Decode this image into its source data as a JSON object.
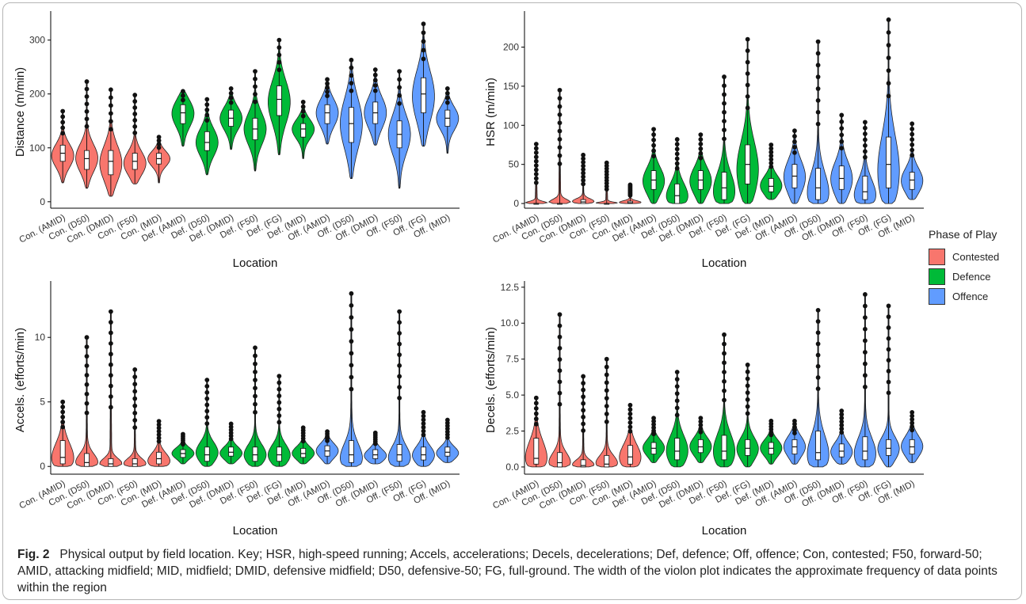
{
  "caption": {
    "fig_label": "Fig. 2",
    "text": "Physical output by field location. Key; HSR, high-speed running; Accels, accelerations; Decels, decelerations; Def, defence; Off, offence; Con, contested; F50, forward-50; AMID, attacking midfield; MID, midfield; DMID, defensive midfield; D50, defensive-50; FG, full-ground. The width of the violon plot indicates the approximate frequency of data points within the region"
  },
  "legend": {
    "title": "Phase of Play",
    "items": [
      {
        "label": "Contested",
        "color": "#F8766D"
      },
      {
        "label": "Defence",
        "color": "#00BA38"
      },
      {
        "label": "Offence",
        "color": "#619CFF"
      }
    ]
  },
  "chart_data": [
    {
      "type": "violin",
      "xlabel": "Location",
      "ylabel": "Distance (m/min)",
      "ylim": [
        -12,
        345
      ],
      "yticks": [
        0,
        100,
        200,
        300
      ],
      "categories": [
        "Con. (AMID)",
        "Con. (D50)",
        "Con. (DMID)",
        "Con. (F50)",
        "Con. (MID)",
        "Def. (AMID)",
        "Def. (D50)",
        "Def. (DMID)",
        "Def. (F50)",
        "Def. (FG)",
        "Def. (MID)",
        "Off. (AMID)",
        "Off. (D50)",
        "Off. (DMID)",
        "Off. (F50)",
        "Off. (FG)",
        "Off. (MID)"
      ],
      "group": [
        "Contested",
        "Contested",
        "Contested",
        "Contested",
        "Contested",
        "Defence",
        "Defence",
        "Defence",
        "Defence",
        "Defence",
        "Defence",
        "Offence",
        "Offence",
        "Offence",
        "Offence",
        "Offence",
        "Offence"
      ],
      "min": [
        35,
        25,
        10,
        33,
        35,
        103,
        50,
        97,
        57,
        87,
        80,
        107,
        43,
        105,
        25,
        103,
        90
      ],
      "q1": [
        75,
        60,
        50,
        60,
        70,
        145,
        95,
        140,
        115,
        160,
        120,
        145,
        110,
        145,
        100,
        165,
        140
      ],
      "median": [
        90,
        80,
        75,
        75,
        80,
        165,
        110,
        155,
        135,
        190,
        135,
        165,
        145,
        165,
        125,
        200,
        155
      ],
      "q3": [
        105,
        95,
        95,
        90,
        90,
        180,
        130,
        170,
        155,
        215,
        145,
        180,
        175,
        185,
        150,
        230,
        170
      ],
      "max": [
        168,
        223,
        208,
        198,
        120,
        205,
        190,
        210,
        242,
        300,
        185,
        227,
        263,
        245,
        242,
        330,
        210
      ],
      "mode": [
        85,
        80,
        70,
        70,
        80,
        165,
        110,
        155,
        135,
        185,
        135,
        165,
        145,
        165,
        125,
        195,
        155
      ]
    },
    {
      "type": "violin",
      "xlabel": "Location",
      "ylabel": "HSR (m/min)",
      "ylim": [
        -6,
        240
      ],
      "yticks": [
        0,
        50,
        100,
        150,
        200
      ],
      "categories": [
        "Con. (AMID)",
        "Con. (D50)",
        "Con. (DMID)",
        "Con. (F50)",
        "Con. (MID)",
        "Def. (AMID)",
        "Def. (D50)",
        "Def. (DMID)",
        "Def. (F50)",
        "Def. (FG)",
        "Def. (MID)",
        "Off. (AMID)",
        "Off. (D50)",
        "Off. (DMID)",
        "Off. (F50)",
        "Off. (FG)",
        "Off. (MID)"
      ],
      "group": [
        "Contested",
        "Contested",
        "Contested",
        "Contested",
        "Contested",
        "Defence",
        "Defence",
        "Defence",
        "Defence",
        "Defence",
        "Defence",
        "Offence",
        "Offence",
        "Offence",
        "Offence",
        "Offence",
        "Offence"
      ],
      "min": [
        0,
        0,
        0,
        0,
        0,
        0,
        0,
        0,
        0,
        0,
        5,
        0,
        0,
        0,
        0,
        0,
        5
      ],
      "q1": [
        0,
        0,
        0,
        0,
        0,
        18,
        0,
        18,
        5,
        25,
        15,
        20,
        5,
        18,
        5,
        20,
        18
      ],
      "median": [
        0,
        0,
        2,
        0,
        1,
        30,
        10,
        30,
        20,
        50,
        22,
        35,
        20,
        32,
        15,
        50,
        30
      ],
      "q3": [
        0,
        0,
        5,
        0,
        3,
        42,
        25,
        42,
        40,
        75,
        32,
        50,
        45,
        48,
        35,
        85,
        40
      ],
      "max": [
        76,
        145,
        62,
        52,
        24,
        95,
        82,
        88,
        162,
        210,
        75,
        93,
        207,
        113,
        104,
        235,
        102
      ],
      "mode": [
        0,
        0,
        2,
        0,
        1,
        28,
        5,
        28,
        10,
        40,
        22,
        33,
        5,
        30,
        5,
        35,
        28
      ]
    },
    {
      "type": "violin",
      "xlabel": "Location",
      "ylabel": "Accels. (efforts/min)",
      "ylim": [
        -0.6,
        14
      ],
      "yticks": [
        0,
        5,
        10
      ],
      "categories": [
        "Con. (AMID)",
        "Con. (D50)",
        "Con. (DMID)",
        "Con. (F50)",
        "Con. (MID)",
        "Def. (AMID)",
        "Def. (D50)",
        "Def. (DMID)",
        "Def. (F50)",
        "Def. (FG)",
        "Def. (MID)",
        "Off. (AMID)",
        "Off. (D50)",
        "Off. (DMID)",
        "Off. (F50)",
        "Off. (FG)",
        "Off. (MID)"
      ],
      "group": [
        "Contested",
        "Contested",
        "Contested",
        "Contested",
        "Contested",
        "Defence",
        "Defence",
        "Defence",
        "Defence",
        "Defence",
        "Defence",
        "Offence",
        "Offence",
        "Offence",
        "Offence",
        "Offence",
        "Offence"
      ],
      "min": [
        0,
        0,
        0,
        0,
        0,
        0.2,
        0,
        0.2,
        0,
        0,
        0.2,
        0.2,
        0,
        0.2,
        0,
        0,
        0.3
      ],
      "q1": [
        0.2,
        0,
        0,
        0,
        0.2,
        0.7,
        0.4,
        0.8,
        0.4,
        0.4,
        0.7,
        0.8,
        0.3,
        0.6,
        0.4,
        0.5,
        0.8
      ],
      "median": [
        0.7,
        0.3,
        0.2,
        0.2,
        0.6,
        1.0,
        0.9,
        1.1,
        0.9,
        0.9,
        1.0,
        1.2,
        0.9,
        0.9,
        0.9,
        0.9,
        1.1
      ],
      "q3": [
        2.0,
        1.0,
        0.6,
        0.6,
        1.1,
        1.3,
        1.5,
        1.5,
        1.5,
        1.5,
        1.4,
        1.6,
        2.0,
        1.3,
        1.7,
        1.5,
        1.5
      ],
      "max": [
        5.0,
        10.0,
        12.0,
        7.5,
        3.5,
        2.5,
        6.7,
        3.3,
        9.2,
        7.0,
        3.0,
        2.7,
        13.4,
        2.6,
        12.0,
        4.2,
        3.6
      ],
      "mode": [
        0.3,
        0.1,
        0.1,
        0.1,
        0.3,
        1.0,
        1.0,
        1.0,
        0.8,
        0.8,
        1.0,
        1.2,
        0.3,
        0.8,
        0.5,
        0.8,
        1.0
      ]
    },
    {
      "type": "violin",
      "xlabel": "Location",
      "ylabel": "Decels. (efforts/min)",
      "ylim": [
        -0.5,
        12.6
      ],
      "yticks": [
        0.0,
        2.5,
        5.0,
        7.5,
        10.0,
        12.5
      ],
      "categories": [
        "Con. (AMID)",
        "Con. (D50)",
        "Con. (DMID)",
        "Con. (F50)",
        "Con. (MID)",
        "Def. (AMID)",
        "Def. (D50)",
        "Def. (DMID)",
        "Def. (F50)",
        "Def. (FG)",
        "Def. (MID)",
        "Off. (AMID)",
        "Off. (D50)",
        "Off. (DMID)",
        "Off. (F50)",
        "Off. (FG)",
        "Off. (MID)"
      ],
      "group": [
        "Contested",
        "Contested",
        "Contested",
        "Contested",
        "Contested",
        "Defence",
        "Defence",
        "Defence",
        "Defence",
        "Defence",
        "Defence",
        "Offence",
        "Offence",
        "Offence",
        "Offence",
        "Offence",
        "Offence"
      ],
      "min": [
        0,
        0,
        0,
        0,
        0,
        0.3,
        0,
        0.3,
        0,
        0,
        0.2,
        0.2,
        0,
        0.2,
        0,
        0,
        0.3
      ],
      "q1": [
        0.2,
        0,
        0,
        0,
        0.2,
        0.9,
        0.5,
        1.0,
        0.5,
        0.8,
        0.9,
        0.9,
        0.5,
        0.7,
        0.5,
        0.8,
        0.9
      ],
      "median": [
        0.6,
        0.3,
        0.1,
        0.2,
        0.7,
        1.3,
        1.1,
        1.4,
        1.1,
        1.3,
        1.3,
        1.4,
        1.0,
        1.1,
        1.1,
        1.3,
        1.4
      ],
      "q3": [
        2.0,
        1.0,
        0.5,
        0.8,
        1.5,
        1.7,
        2.0,
        1.9,
        2.2,
        1.9,
        1.7,
        1.9,
        2.5,
        1.6,
        2.1,
        1.9,
        1.9
      ],
      "max": [
        4.8,
        10.6,
        6.3,
        7.5,
        4.3,
        3.4,
        6.6,
        3.4,
        9.2,
        7.1,
        3.2,
        3.2,
        10.9,
        3.9,
        12.0,
        11.2,
        3.8
      ],
      "mode": [
        0.3,
        0.1,
        0.05,
        0.1,
        0.5,
        1.3,
        1.0,
        1.4,
        0.9,
        1.2,
        1.3,
        1.4,
        0.5,
        1.0,
        0.7,
        1.2,
        1.4
      ]
    }
  ]
}
